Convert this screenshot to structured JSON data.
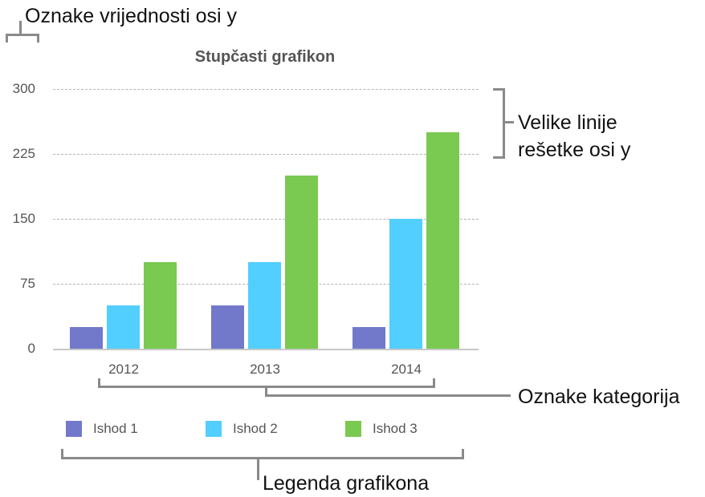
{
  "chart_data": {
    "type": "bar",
    "title": "Stupčasti grafikon",
    "categories": [
      "2012",
      "2013",
      "2014"
    ],
    "series": [
      {
        "name": "Ishod 1",
        "color": "#7279CA",
        "values": [
          25,
          50,
          25
        ]
      },
      {
        "name": "Ishod 2",
        "color": "#52CEFF",
        "values": [
          50,
          100,
          150
        ]
      },
      {
        "name": "Ishod 3",
        "color": "#7AC951",
        "values": [
          100,
          200,
          250
        ]
      }
    ],
    "xlabel": "",
    "ylabel": "",
    "ylim": [
      0,
      300
    ],
    "yticks": [
      "0",
      "75",
      "150",
      "225",
      "300"
    ],
    "grid": true,
    "legend_position": "bottom"
  },
  "annotations": {
    "y_axis_labels": "Oznake vrijednosti osi y",
    "gridlines_line1": "Velike linije",
    "gridlines_line2": "rešetke osi y",
    "category_labels": "Oznake kategorija",
    "legend": "Legenda grafikona"
  }
}
